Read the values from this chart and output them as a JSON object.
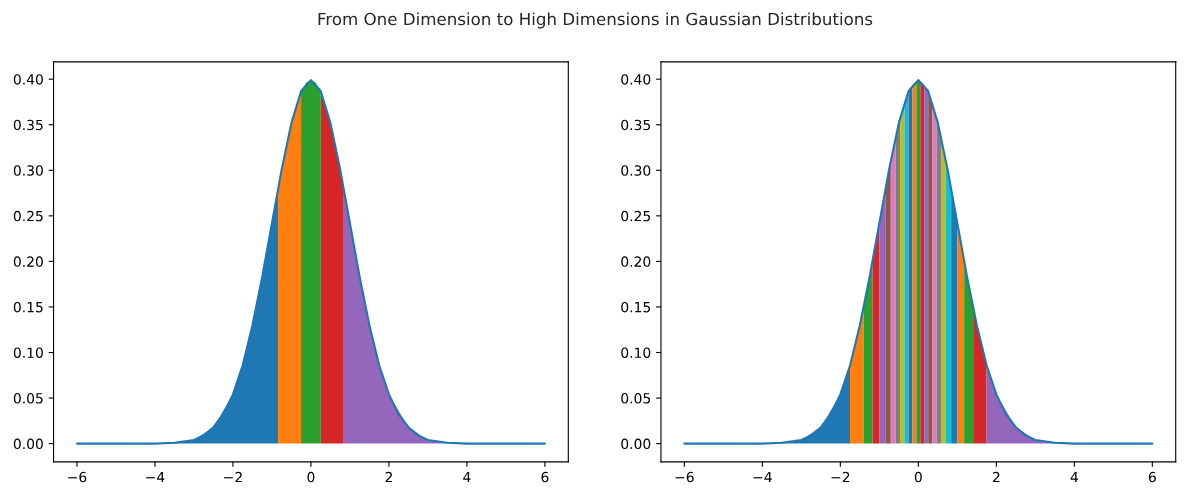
{
  "chart_data": [
    {
      "type": "area",
      "title": "From One Dimension to High Dimensions in Gaussian Distributions",
      "xlim": [
        -6.6,
        6.6
      ],
      "ylim": [
        -0.02,
        0.419
      ],
      "xticks": [
        {
          "value": -6,
          "label": "−6"
        },
        {
          "value": -4,
          "label": "−4"
        },
        {
          "value": -2,
          "label": "−2"
        },
        0,
        2,
        4,
        6
      ],
      "yticks": [
        {
          "value": 0,
          "label": "0.00"
        },
        {
          "value": 0.05,
          "label": "0.05"
        },
        {
          "value": 0.1,
          "label": "0.10"
        },
        {
          "value": 0.15,
          "label": "0.15"
        },
        {
          "value": 0.2,
          "label": "0.20"
        },
        {
          "value": 0.25,
          "label": "0.25"
        },
        {
          "value": 0.3,
          "label": "0.30"
        },
        {
          "value": 0.35,
          "label": "0.35"
        },
        {
          "value": 0.4,
          "label": "0.40"
        }
      ],
      "series": [
        {
          "type": "area",
          "color": "#1f77b4",
          "x": [
            -6,
            -5,
            -4,
            -3.5,
            -3,
            -2.5,
            -2,
            -1.75,
            -1.5,
            -1.25,
            -1,
            -0.842
          ],
          "values": [
            0,
            0,
            0,
            0.001,
            0.004,
            0.018,
            0.054,
            0.086,
            0.13,
            0.183,
            0.242,
            0.28
          ]
        },
        {
          "type": "area",
          "color": "#ff7f0e",
          "x": [
            -0.842,
            -0.75,
            -0.5,
            -0.253
          ],
          "values": [
            0.28,
            0.301,
            0.352,
            0.386
          ]
        },
        {
          "type": "area",
          "color": "#2ca02c",
          "x": [
            -0.253,
            -0.125,
            0,
            0.125,
            0.253
          ],
          "values": [
            0.386,
            0.396,
            0.399,
            0.396,
            0.386
          ]
        },
        {
          "type": "area",
          "color": "#d62728",
          "x": [
            0.253,
            0.5,
            0.75,
            0.842
          ],
          "values": [
            0.386,
            0.352,
            0.301,
            0.28
          ]
        },
        {
          "type": "area",
          "color": "#9467bd",
          "x": [
            0.842,
            1,
            1.25,
            1.5,
            1.75,
            2,
            2.5,
            3,
            3.5,
            4,
            5,
            6
          ],
          "values": [
            0.28,
            0.242,
            0.183,
            0.13,
            0.086,
            0.054,
            0.018,
            0.004,
            0.001,
            0,
            0,
            0
          ]
        },
        {
          "type": "line",
          "color": "#1f77b4",
          "x": [
            -6,
            -5,
            -4,
            -3.5,
            -3,
            -2.75,
            -2.5,
            -2.25,
            -2,
            -1.75,
            -1.5,
            -1.25,
            -1,
            -0.75,
            -0.5,
            -0.25,
            0,
            0.25,
            0.5,
            0.75,
            1,
            1.25,
            1.5,
            1.75,
            2,
            2.25,
            2.5,
            2.75,
            3,
            3.5,
            4,
            5,
            6
          ],
          "values": [
            0,
            0,
            0,
            0.001,
            0.004,
            0.009,
            0.018,
            0.032,
            0.054,
            0.086,
            0.13,
            0.183,
            0.242,
            0.301,
            0.352,
            0.387,
            0.399,
            0.387,
            0.352,
            0.301,
            0.242,
            0.183,
            0.13,
            0.086,
            0.054,
            0.032,
            0.018,
            0.009,
            0.004,
            0.001,
            0,
            0,
            0
          ]
        }
      ]
    },
    {
      "type": "area",
      "xlim": [
        -6.6,
        6.6
      ],
      "ylim": [
        -0.02,
        0.419
      ],
      "xticks": [
        {
          "value": -6,
          "label": "−6"
        },
        {
          "value": -4,
          "label": "−4"
        },
        {
          "value": -2,
          "label": "−2"
        },
        0,
        2,
        4,
        6
      ],
      "yticks": [
        {
          "value": 0,
          "label": "0.00"
        },
        {
          "value": 0.05,
          "label": "0.05"
        },
        {
          "value": 0.1,
          "label": "0.10"
        },
        {
          "value": 0.15,
          "label": "0.15"
        },
        {
          "value": 0.2,
          "label": "0.20"
        },
        {
          "value": 0.25,
          "label": "0.25"
        },
        {
          "value": 0.3,
          "label": "0.30"
        },
        {
          "value": 0.35,
          "label": "0.35"
        },
        {
          "value": 0.4,
          "label": "0.40"
        }
      ],
      "series": [
        {
          "type": "area",
          "color": "#1f77b4",
          "x": [
            -6,
            -5,
            -4,
            -3.5,
            -3,
            -2.5,
            -2,
            -1.751
          ],
          "values": [
            0,
            0,
            0,
            0.001,
            0.004,
            0.018,
            0.054,
            0.086
          ]
        },
        {
          "type": "area",
          "color": "#ff7f0e",
          "x": [
            -1.751,
            -1.6,
            -1.405
          ],
          "values": [
            0.086,
            0.111,
            0.149
          ]
        },
        {
          "type": "area",
          "color": "#2ca02c",
          "x": [
            -1.405,
            -1.3,
            -1.175
          ],
          "values": [
            0.149,
            0.171,
            0.2
          ]
        },
        {
          "type": "area",
          "color": "#d62728",
          "x": [
            -1.175,
            -0.994
          ],
          "values": [
            0.2,
            0.243
          ]
        },
        {
          "type": "area",
          "color": "#9467bd",
          "x": [
            -0.994,
            -0.842
          ],
          "values": [
            0.243,
            0.28
          ]
        },
        {
          "type": "area",
          "color": "#8c564b",
          "x": [
            -0.842,
            -0.706
          ],
          "values": [
            0.28,
            0.311
          ]
        },
        {
          "type": "area",
          "color": "#e377c2",
          "x": [
            -0.706,
            -0.583
          ],
          "values": [
            0.311,
            0.337
          ]
        },
        {
          "type": "area",
          "color": "#7f7f7f",
          "x": [
            -0.583,
            -0.468
          ],
          "values": [
            0.337,
            0.358
          ]
        },
        {
          "type": "area",
          "color": "#bcbd22",
          "x": [
            -0.468,
            -0.358
          ],
          "values": [
            0.358,
            0.374
          ]
        },
        {
          "type": "area",
          "color": "#17becf",
          "x": [
            -0.358,
            -0.253
          ],
          "values": [
            0.374,
            0.386
          ]
        },
        {
          "type": "area",
          "color": "#1f77b4",
          "x": [
            -0.253,
            -0.151
          ],
          "values": [
            0.386,
            0.394
          ]
        },
        {
          "type": "area",
          "color": "#ff7f0e",
          "x": [
            -0.151,
            -0.05
          ],
          "values": [
            0.394,
            0.398
          ]
        },
        {
          "type": "area",
          "color": "#2ca02c",
          "x": [
            -0.05,
            0,
            0.05
          ],
          "values": [
            0.398,
            0.399,
            0.398
          ]
        },
        {
          "type": "area",
          "color": "#d62728",
          "x": [
            0.05,
            0.151
          ],
          "values": [
            0.398,
            0.394
          ]
        },
        {
          "type": "area",
          "color": "#9467bd",
          "x": [
            0.151,
            0.253
          ],
          "values": [
            0.394,
            0.386
          ]
        },
        {
          "type": "area",
          "color": "#8c564b",
          "x": [
            0.253,
            0.358
          ],
          "values": [
            0.386,
            0.374
          ]
        },
        {
          "type": "area",
          "color": "#e377c2",
          "x": [
            0.358,
            0.468
          ],
          "values": [
            0.374,
            0.358
          ]
        },
        {
          "type": "area",
          "color": "#7f7f7f",
          "x": [
            0.468,
            0.583
          ],
          "values": [
            0.358,
            0.337
          ]
        },
        {
          "type": "area",
          "color": "#bcbd22",
          "x": [
            0.583,
            0.706
          ],
          "values": [
            0.337,
            0.311
          ]
        },
        {
          "type": "area",
          "color": "#17becf",
          "x": [
            0.706,
            0.842
          ],
          "values": [
            0.311,
            0.28
          ]
        },
        {
          "type": "area",
          "color": "#1f77b4",
          "x": [
            0.842,
            0.994
          ],
          "values": [
            0.28,
            0.243
          ]
        },
        {
          "type": "area",
          "color": "#ff7f0e",
          "x": [
            0.994,
            1.175
          ],
          "values": [
            0.243,
            0.2
          ]
        },
        {
          "type": "area",
          "color": "#2ca02c",
          "x": [
            1.175,
            1.3,
            1.405
          ],
          "values": [
            0.2,
            0.171,
            0.149
          ]
        },
        {
          "type": "area",
          "color": "#d62728",
          "x": [
            1.405,
            1.6,
            1.751
          ],
          "values": [
            0.149,
            0.111,
            0.086
          ]
        },
        {
          "type": "area",
          "color": "#9467bd",
          "x": [
            1.751,
            2,
            2.5,
            3,
            3.5,
            4,
            5,
            6
          ],
          "values": [
            0.086,
            0.054,
            0.018,
            0.004,
            0.001,
            0,
            0,
            0
          ]
        },
        {
          "type": "line",
          "color": "#1f77b4",
          "x": [
            -6,
            -5,
            -4,
            -3.5,
            -3,
            -2.75,
            -2.5,
            -2.25,
            -2,
            -1.75,
            -1.5,
            -1.25,
            -1,
            -0.75,
            -0.5,
            -0.25,
            0,
            0.25,
            0.5,
            0.75,
            1,
            1.25,
            1.5,
            1.75,
            2,
            2.25,
            2.5,
            2.75,
            3,
            3.5,
            4,
            5,
            6
          ],
          "values": [
            0,
            0,
            0,
            0.001,
            0.004,
            0.009,
            0.018,
            0.032,
            0.054,
            0.086,
            0.13,
            0.183,
            0.242,
            0.301,
            0.352,
            0.387,
            0.399,
            0.387,
            0.352,
            0.301,
            0.242,
            0.183,
            0.13,
            0.086,
            0.054,
            0.032,
            0.018,
            0.009,
            0.004,
            0.001,
            0,
            0,
            0
          ]
        }
      ]
    }
  ]
}
